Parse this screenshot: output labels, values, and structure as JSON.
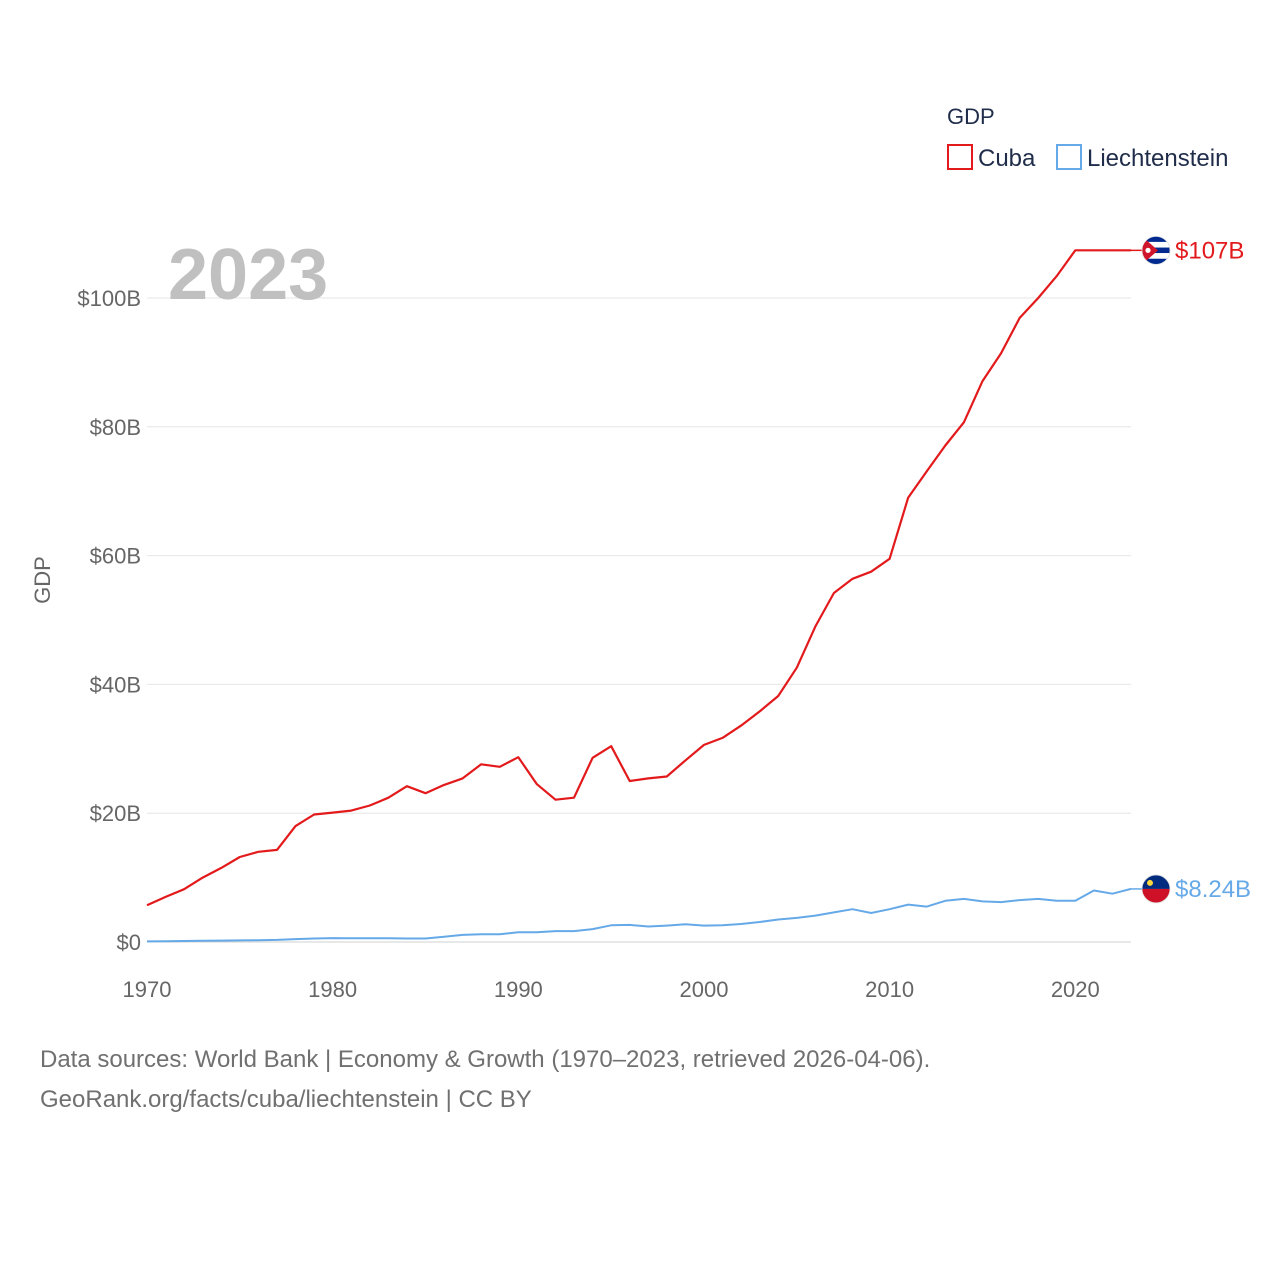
{
  "chart_data": {
    "type": "line",
    "year_label": "2023",
    "ylabel": "GDP",
    "ylim": [
      0,
      110
    ],
    "xlim": [
      1970,
      2023
    ],
    "y_ticks": [
      {
        "value": 0,
        "label": "$0"
      },
      {
        "value": 20,
        "label": "$20B"
      },
      {
        "value": 40,
        "label": "$40B"
      },
      {
        "value": 60,
        "label": "$60B"
      },
      {
        "value": 80,
        "label": "$80B"
      },
      {
        "value": 100,
        "label": "$100B"
      }
    ],
    "x_ticks": [
      {
        "value": 1970,
        "label": "1970"
      },
      {
        "value": 1980,
        "label": "1980"
      },
      {
        "value": 1990,
        "label": "1990"
      },
      {
        "value": 2000,
        "label": "2000"
      },
      {
        "value": 2010,
        "label": "2010"
      },
      {
        "value": 2020,
        "label": "2020"
      }
    ],
    "legend": {
      "title": "GDP",
      "placement": "top-right"
    },
    "x": [
      1970,
      1971,
      1972,
      1973,
      1974,
      1975,
      1976,
      1977,
      1978,
      1979,
      1980,
      1981,
      1982,
      1983,
      1984,
      1985,
      1986,
      1987,
      1988,
      1989,
      1990,
      1991,
      1992,
      1993,
      1994,
      1995,
      1996,
      1997,
      1998,
      1999,
      2000,
      2001,
      2002,
      2003,
      2004,
      2005,
      2006,
      2007,
      2008,
      2009,
      2010,
      2011,
      2012,
      2013,
      2014,
      2015,
      2016,
      2017,
      2018,
      2019,
      2020,
      2021,
      2022,
      2023
    ],
    "series": [
      {
        "name": "Cuba",
        "color": "#e31a1c",
        "end_label": "$107B",
        "flag": "cuba-flag",
        "values": [
          5.7,
          7.0,
          8.2,
          10.0,
          11.5,
          13.2,
          14.0,
          14.3,
          18.0,
          19.8,
          20.1,
          20.4,
          21.2,
          22.4,
          24.2,
          23.1,
          24.4,
          25.4,
          27.6,
          27.2,
          28.7,
          24.5,
          22.1,
          22.4,
          28.6,
          30.4,
          25.0,
          25.4,
          25.7,
          28.2,
          30.6,
          31.7,
          33.6,
          35.8,
          38.2,
          42.6,
          49.0,
          54.2,
          56.4,
          57.5,
          59.5,
          69.0,
          73.1,
          77.1,
          80.7,
          87.1,
          91.4,
          96.9,
          100.0,
          103.4,
          107.4,
          107.4,
          107.4,
          107.4
        ]
      },
      {
        "name": "Liechtenstein",
        "color": "#66a9e8",
        "end_label": "$8.24B",
        "flag": "liechtenstein-flag",
        "values": [
          0.1,
          0.12,
          0.15,
          0.2,
          0.22,
          0.25,
          0.28,
          0.32,
          0.45,
          0.55,
          0.6,
          0.58,
          0.57,
          0.58,
          0.55,
          0.55,
          0.8,
          1.1,
          1.2,
          1.2,
          1.5,
          1.5,
          1.7,
          1.7,
          2.0,
          2.6,
          2.65,
          2.4,
          2.55,
          2.75,
          2.55,
          2.6,
          2.8,
          3.1,
          3.5,
          3.75,
          4.1,
          4.6,
          5.1,
          4.5,
          5.1,
          5.8,
          5.5,
          6.4,
          6.7,
          6.3,
          6.2,
          6.5,
          6.7,
          6.4,
          6.4,
          8.0,
          7.5,
          8.24
        ]
      }
    ]
  },
  "footer": {
    "line1": "Data sources: World Bank | Economy & Growth (1970–2023, retrieved 2026-04-06).",
    "line2": "GeoRank.org/facts/cuba/liechtenstein | CC BY"
  }
}
